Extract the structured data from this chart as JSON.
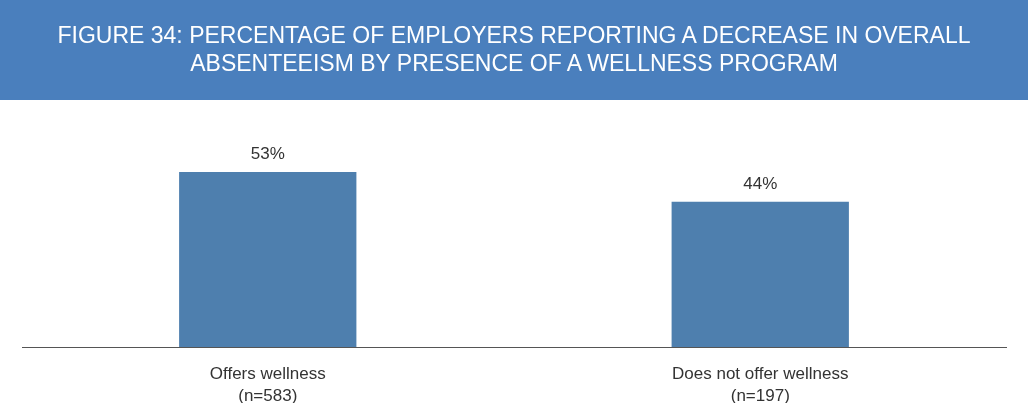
{
  "chart_data": {
    "type": "bar",
    "title": "FIGURE 34: PERCENTAGE OF EMPLOYERS REPORTING A DECREASE IN OVERALL ABSENTEEISM BY PRESENCE OF A WELLNESS PROGRAM",
    "categories": [
      "Offers wellness\n(n=583)",
      "Does not offer wellness\n(n=197)"
    ],
    "values": [
      53,
      44
    ],
    "value_labels": [
      "53%",
      "44%"
    ],
    "color": "#4e7fae"
  }
}
